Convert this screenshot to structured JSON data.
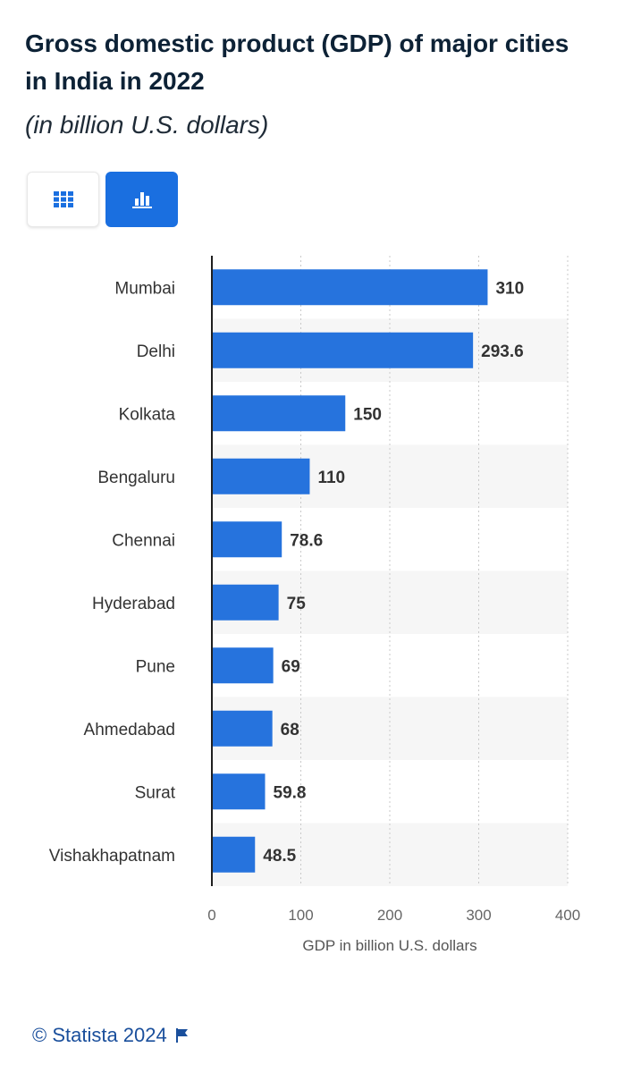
{
  "header": {
    "title": "Gross domestic product (GDP) of major cities in India in 2022",
    "subtitle": "(in billion U.S. dollars)"
  },
  "toolbar": {
    "table_icon": "grid-icon",
    "chart_icon": "bar-chart-icon",
    "active_view": "chart"
  },
  "colors": {
    "bar": "#2673dd",
    "accent": "#1a6fe0",
    "band": "#f6f6f6",
    "footer": "#1a4f9c"
  },
  "chart_data": {
    "type": "bar",
    "orientation": "horizontal",
    "categories": [
      "Mumbai",
      "Delhi",
      "Kolkata",
      "Bengaluru",
      "Chennai",
      "Hyderabad",
      "Pune",
      "Ahmedabad",
      "Surat",
      "Vishakhapatnam"
    ],
    "values": [
      310,
      293.6,
      150,
      110,
      78.6,
      75,
      69,
      68,
      59.8,
      48.5
    ],
    "value_labels": [
      "310",
      "293.6",
      "150",
      "110",
      "78.6",
      "75",
      "69",
      "68",
      "59.8",
      "48.5"
    ],
    "xlabel": "GDP in billion U.S. dollars",
    "ylabel": "",
    "xlim": [
      0,
      400
    ],
    "xticks": [
      "0",
      "100",
      "200",
      "300",
      "400"
    ],
    "grid": true,
    "legend": "none"
  },
  "footer": {
    "credit": "© Statista 2024",
    "flag_icon": "flag-icon"
  }
}
